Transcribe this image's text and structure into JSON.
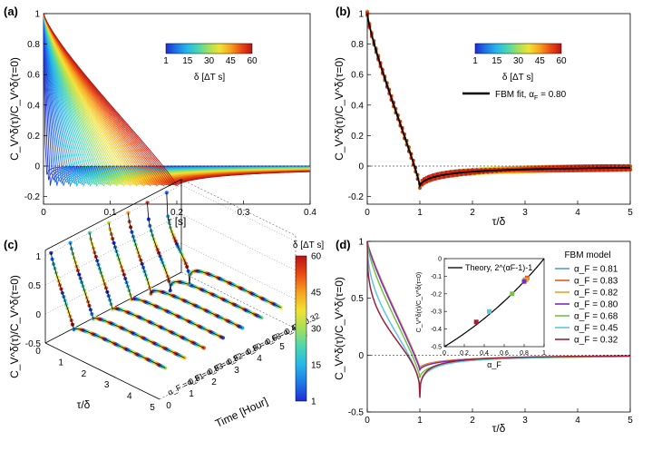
{
  "colorbar_colors": [
    "#1f2bd6",
    "#1f78e6",
    "#26b7e8",
    "#4cd6b0",
    "#a4e05a",
    "#f2e233",
    "#f7a21c",
    "#ea4a14",
    "#b81414"
  ],
  "panel_a": {
    "label": "(a)",
    "xlabel": "τ [s]",
    "ylabel": "C_V^δ(τ)/C_V^δ(τ=0)",
    "xticks": [
      "0",
      "0.1",
      "0.2",
      "0.3",
      "0.4"
    ],
    "yticks": [
      "-0.2",
      "0",
      "0.2",
      "0.4",
      "0.6",
      "0.8",
      "1"
    ],
    "colorbar_ticks": [
      "1",
      "15",
      "30",
      "45",
      "60"
    ],
    "colorbar_label": "δ [ΔT s]"
  },
  "panel_b": {
    "label": "(b)",
    "xlabel": "τ/δ",
    "ylabel": "C_V^δ(τ)/C_V^δ(τ=0)",
    "xticks": [
      "0",
      "1",
      "2",
      "3",
      "4",
      "5"
    ],
    "yticks": [
      "-0.2",
      "0",
      "0.2",
      "0.4",
      "0.6",
      "0.8",
      "1"
    ],
    "colorbar_ticks": [
      "1",
      "15",
      "30",
      "45",
      "60"
    ],
    "colorbar_label": "δ [ΔT s]",
    "legend_text": "FBM fit, α",
    "legend_sub": "F",
    "legend_value": " = 0.80"
  },
  "panel_c": {
    "label": "(c)",
    "xlabel": "τ/δ",
    "ylabel": "C_V^δ(τ)/C_V^δ(τ=0)",
    "depth_label": "Time [Hour]",
    "xticks": [
      "0",
      "1",
      "2",
      "3",
      "4",
      "5"
    ],
    "depth_ticks": [
      "0",
      "1",
      "2",
      "3",
      "4",
      "5",
      "6"
    ],
    "zticks": [
      "-0.5",
      "0",
      "0.5",
      "1"
    ],
    "colorbar_title": "δ [ΔT s]",
    "colorbar_ticks": [
      "1",
      "15",
      "30",
      "45",
      "60"
    ],
    "alpha_labels": [
      "α_F = 0.32",
      "α_F = 0.45",
      "α_F = 0.68",
      "α_F = 0.80",
      "α_F = 0.82",
      "α_F = 0.83",
      "α_F = 0.81"
    ]
  },
  "panel_d": {
    "label": "(d)",
    "xlabel": "τ/δ",
    "ylabel": "C_V^δ(τ)/C_V^δ(τ=0)",
    "xticks": [
      "0",
      "1",
      "2",
      "3",
      "4",
      "5"
    ],
    "yticks": [
      "-0.5",
      "0",
      "0.5",
      "1"
    ],
    "legend_title": "FBM model",
    "inset": {
      "legend": "Theory, 2^(αF-1)-1",
      "xlabel": "α_F",
      "ylabel": "C_V^δ(τ)/C_V^δ(τ=0)",
      "xticks": [
        "0",
        "0.2",
        "0.4",
        "0.6",
        "0.8",
        "1"
      ],
      "yticks": [
        "-0.5",
        "-0.4",
        "-0.3",
        "-0.2",
        "-0.1",
        "0"
      ]
    }
  },
  "chart_data": [
    {
      "type": "line",
      "panel": "a",
      "title": "",
      "xlabel": "τ [s]",
      "ylabel": "C_V^δ(τ)/C_V^δ(τ=0)",
      "xlim": [
        0,
        0.4
      ],
      "ylim": [
        -0.25,
        1.0
      ],
      "series_description": "Normalized autocorrelation curves for δ = 1..60 ΔT s; each curve decays linearly from 1 to a minimum near τ=δ then relaxes to 0",
      "delta_range": [
        1,
        60
      ],
      "min_at_tau_eq_delta": -0.13
    },
    {
      "type": "scatter",
      "panel": "b",
      "xlabel": "τ/δ",
      "ylabel": "C_V^δ(τ)/C_V^δ(τ=0)",
      "xlim": [
        0,
        5
      ],
      "ylim": [
        -0.25,
        1.0
      ],
      "fit": {
        "name": "FBM fit",
        "alpha_F": 0.8
      },
      "min_at_x1": -0.13
    },
    {
      "type": "line",
      "panel": "c",
      "xlabel": "τ/δ",
      "depth_label": "Time [Hour]",
      "zlim": [
        -0.5,
        1
      ],
      "series": [
        {
          "name": "α_F = 0.81",
          "alpha": 0.81
        },
        {
          "name": "α_F = 0.83",
          "alpha": 0.83
        },
        {
          "name": "α_F = 0.82",
          "alpha": 0.82
        },
        {
          "name": "α_F = 0.80",
          "alpha": 0.8
        },
        {
          "name": "α_F = 0.68",
          "alpha": 0.68
        },
        {
          "name": "α_F = 0.45",
          "alpha": 0.45
        },
        {
          "name": "α_F = 0.32",
          "alpha": 0.32
        }
      ]
    },
    {
      "type": "line",
      "panel": "d",
      "title": "FBM model",
      "xlabel": "τ/δ",
      "ylabel": "C_V^δ(τ)/C_V^δ(τ=0)",
      "xlim": [
        0,
        5
      ],
      "ylim": [
        -0.5,
        1.0
      ],
      "series": [
        {
          "name": "α_F = 0.81",
          "alpha": 0.81,
          "color": "#4f9fd6"
        },
        {
          "name": "α_F = 0.83",
          "alpha": 0.83,
          "color": "#e05b24"
        },
        {
          "name": "α_F = 0.82",
          "alpha": 0.82,
          "color": "#e8a42a"
        },
        {
          "name": "α_F = 0.80",
          "alpha": 0.8,
          "color": "#7b2cbf"
        },
        {
          "name": "α_F = 0.68",
          "alpha": 0.68,
          "color": "#76c043"
        },
        {
          "name": "α_F = 0.45",
          "alpha": 0.45,
          "color": "#59c7e6"
        },
        {
          "name": "α_F = 0.32",
          "alpha": 0.32,
          "color": "#a01e3c"
        }
      ],
      "inset": {
        "type": "scatter",
        "xlabel": "α_F",
        "xlim": [
          0,
          1
        ],
        "ylim": [
          -0.5,
          0
        ],
        "theory": "2^(αF-1)-1",
        "points": [
          {
            "x": 0.81,
            "y": -0.12,
            "color": "#4f9fd6"
          },
          {
            "x": 0.83,
            "y": -0.11,
            "color": "#e05b24"
          },
          {
            "x": 0.82,
            "y": -0.12,
            "color": "#e8a42a"
          },
          {
            "x": 0.8,
            "y": -0.13,
            "color": "#7b2cbf"
          },
          {
            "x": 0.68,
            "y": -0.2,
            "color": "#76c043"
          },
          {
            "x": 0.45,
            "y": -0.3,
            "color": "#59c7e6"
          },
          {
            "x": 0.32,
            "y": -0.36,
            "color": "#a01e3c"
          }
        ]
      }
    }
  ]
}
